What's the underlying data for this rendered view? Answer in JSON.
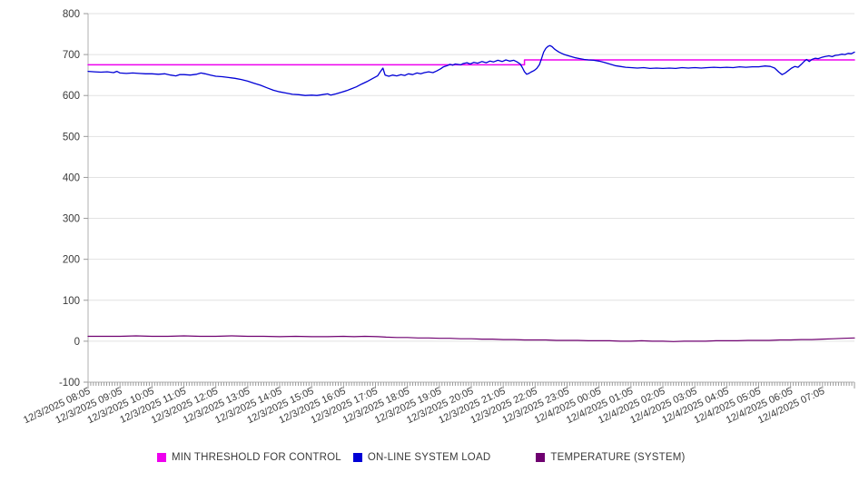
{
  "page": {
    "background": "#ffffff"
  },
  "chart_data": {
    "type": "line",
    "title": "",
    "xlabel": "",
    "ylabel": "",
    "grid": "horizontal",
    "legend_position": "bottom",
    "y_axis": {
      "ylim": [
        -100,
        800
      ],
      "ticks": [
        800,
        700,
        600,
        500,
        400,
        300,
        200,
        100,
        0,
        -100
      ]
    },
    "x_axis": {
      "range_minutes": [
        0,
        1440
      ],
      "minor_tick_minutes": 5,
      "major_tick_minutes": 60,
      "tick_labels": [
        "12/3/2025 08:05",
        "12/3/2025 09:05",
        "12/3/2025 10:05",
        "12/3/2025 11:05",
        "12/3/2025 12:05",
        "12/3/2025 13:05",
        "12/3/2025 14:05",
        "12/3/2025 15:05",
        "12/3/2025 16:05",
        "12/3/2025 17:05",
        "12/3/2025 18:05",
        "12/3/2025 19:05",
        "12/3/2025 20:05",
        "12/3/2025 21:05",
        "12/3/2025 22:05",
        "12/3/2025 23:05",
        "12/4/2025 00:05",
        "12/4/2025 01:05",
        "12/4/2025 02:05",
        "12/4/2025 03:05",
        "12/4/2025 04:05",
        "12/4/2025 05:05",
        "12/4/2025 06:05",
        "12/4/2025 07:05"
      ]
    },
    "series": [
      {
        "name": "MIN THRESHOLD FOR CONTROL",
        "color": "#ee00ee",
        "width": 1.5,
        "points": [
          [
            0,
            675
          ],
          [
            820,
            675
          ],
          [
            820,
            687
          ],
          [
            1440,
            687
          ]
        ]
      },
      {
        "name": "ON-LINE SYSTEM LOAD",
        "color": "#0000d6",
        "width": 1.3,
        "points": [
          [
            0,
            659
          ],
          [
            12,
            658
          ],
          [
            24,
            657
          ],
          [
            36,
            658
          ],
          [
            48,
            656
          ],
          [
            54,
            659
          ],
          [
            60,
            655
          ],
          [
            72,
            654
          ],
          [
            84,
            655
          ],
          [
            96,
            654
          ],
          [
            108,
            653
          ],
          [
            120,
            653
          ],
          [
            132,
            652
          ],
          [
            144,
            653
          ],
          [
            155,
            650
          ],
          [
            165,
            648
          ],
          [
            172,
            651
          ],
          [
            180,
            651
          ],
          [
            192,
            650
          ],
          [
            204,
            652
          ],
          [
            212,
            655
          ],
          [
            220,
            653
          ],
          [
            230,
            650
          ],
          [
            240,
            647
          ],
          [
            252,
            646
          ],
          [
            264,
            644
          ],
          [
            276,
            642
          ],
          [
            288,
            639
          ],
          [
            300,
            635
          ],
          [
            312,
            630
          ],
          [
            324,
            625
          ],
          [
            336,
            619
          ],
          [
            348,
            613
          ],
          [
            360,
            609
          ],
          [
            372,
            606
          ],
          [
            384,
            603
          ],
          [
            396,
            602
          ],
          [
            408,
            600
          ],
          [
            420,
            601
          ],
          [
            430,
            600
          ],
          [
            440,
            602
          ],
          [
            450,
            604
          ],
          [
            456,
            601
          ],
          [
            466,
            604
          ],
          [
            476,
            608
          ],
          [
            486,
            612
          ],
          [
            494,
            616
          ],
          [
            504,
            621
          ],
          [
            514,
            628
          ],
          [
            524,
            634
          ],
          [
            534,
            641
          ],
          [
            544,
            648
          ],
          [
            550,
            660
          ],
          [
            554,
            667
          ],
          [
            558,
            650
          ],
          [
            565,
            647
          ],
          [
            572,
            650
          ],
          [
            580,
            648
          ],
          [
            588,
            651
          ],
          [
            595,
            649
          ],
          [
            602,
            653
          ],
          [
            610,
            651
          ],
          [
            618,
            655
          ],
          [
            625,
            653
          ],
          [
            632,
            656
          ],
          [
            640,
            658
          ],
          [
            648,
            656
          ],
          [
            655,
            660
          ],
          [
            662,
            665
          ],
          [
            668,
            670
          ],
          [
            675,
            673
          ],
          [
            680,
            676
          ],
          [
            685,
            674
          ],
          [
            690,
            677
          ],
          [
            700,
            675
          ],
          [
            705,
            678
          ],
          [
            712,
            680
          ],
          [
            718,
            677
          ],
          [
            725,
            681
          ],
          [
            732,
            679
          ],
          [
            740,
            683
          ],
          [
            748,
            680
          ],
          [
            755,
            684
          ],
          [
            762,
            682
          ],
          [
            770,
            686
          ],
          [
            778,
            683
          ],
          [
            785,
            687
          ],
          [
            792,
            684
          ],
          [
            800,
            686
          ],
          [
            806,
            682
          ],
          [
            812,
            677
          ],
          [
            816,
            668
          ],
          [
            820,
            658
          ],
          [
            824,
            652
          ],
          [
            828,
            654
          ],
          [
            832,
            657
          ],
          [
            838,
            661
          ],
          [
            843,
            666
          ],
          [
            848,
            675
          ],
          [
            852,
            690
          ],
          [
            856,
            706
          ],
          [
            860,
            715
          ],
          [
            864,
            720
          ],
          [
            868,
            722
          ],
          [
            872,
            719
          ],
          [
            876,
            714
          ],
          [
            880,
            710
          ],
          [
            885,
            706
          ],
          [
            890,
            703
          ],
          [
            895,
            700
          ],
          [
            900,
            698
          ],
          [
            908,
            695
          ],
          [
            916,
            692
          ],
          [
            924,
            690
          ],
          [
            932,
            688
          ],
          [
            940,
            687
          ],
          [
            950,
            686
          ],
          [
            960,
            684
          ],
          [
            970,
            681
          ],
          [
            980,
            677
          ],
          [
            990,
            673
          ],
          [
            1000,
            671
          ],
          [
            1010,
            669
          ],
          [
            1020,
            668
          ],
          [
            1032,
            667
          ],
          [
            1044,
            668
          ],
          [
            1056,
            666
          ],
          [
            1068,
            667
          ],
          [
            1080,
            666
          ],
          [
            1092,
            667
          ],
          [
            1104,
            666
          ],
          [
            1116,
            668
          ],
          [
            1128,
            667
          ],
          [
            1140,
            668
          ],
          [
            1152,
            667
          ],
          [
            1164,
            668
          ],
          [
            1176,
            669
          ],
          [
            1188,
            668
          ],
          [
            1200,
            669
          ],
          [
            1212,
            668
          ],
          [
            1224,
            670
          ],
          [
            1236,
            669
          ],
          [
            1248,
            670
          ],
          [
            1260,
            670
          ],
          [
            1272,
            672
          ],
          [
            1282,
            671
          ],
          [
            1290,
            667
          ],
          [
            1298,
            657
          ],
          [
            1304,
            651
          ],
          [
            1310,
            655
          ],
          [
            1316,
            661
          ],
          [
            1322,
            667
          ],
          [
            1328,
            671
          ],
          [
            1334,
            669
          ],
          [
            1340,
            676
          ],
          [
            1346,
            684
          ],
          [
            1350,
            688
          ],
          [
            1355,
            683
          ],
          [
            1360,
            688
          ],
          [
            1366,
            691
          ],
          [
            1372,
            690
          ],
          [
            1378,
            693
          ],
          [
            1384,
            695
          ],
          [
            1392,
            697
          ],
          [
            1398,
            695
          ],
          [
            1404,
            698
          ],
          [
            1410,
            699
          ],
          [
            1416,
            701
          ],
          [
            1422,
            700
          ],
          [
            1428,
            703
          ],
          [
            1434,
            702
          ],
          [
            1440,
            706
          ]
        ]
      },
      {
        "name": "TEMPERATURE (SYSTEM)",
        "color": "#6f0070",
        "width": 1.2,
        "points": [
          [
            0,
            12
          ],
          [
            30,
            12
          ],
          [
            60,
            12
          ],
          [
            90,
            13
          ],
          [
            120,
            12
          ],
          [
            150,
            12
          ],
          [
            180,
            13
          ],
          [
            210,
            12
          ],
          [
            240,
            12
          ],
          [
            270,
            13
          ],
          [
            300,
            12
          ],
          [
            330,
            12
          ],
          [
            360,
            11
          ],
          [
            390,
            12
          ],
          [
            420,
            11
          ],
          [
            450,
            11
          ],
          [
            480,
            12
          ],
          [
            500,
            11
          ],
          [
            520,
            12
          ],
          [
            545,
            11
          ],
          [
            560,
            10
          ],
          [
            580,
            9
          ],
          [
            600,
            9
          ],
          [
            620,
            8
          ],
          [
            640,
            8
          ],
          [
            660,
            7
          ],
          [
            680,
            7
          ],
          [
            700,
            6
          ],
          [
            720,
            6
          ],
          [
            740,
            5
          ],
          [
            760,
            5
          ],
          [
            780,
            4
          ],
          [
            800,
            4
          ],
          [
            820,
            3
          ],
          [
            840,
            3
          ],
          [
            860,
            3
          ],
          [
            880,
            2
          ],
          [
            900,
            2
          ],
          [
            920,
            2
          ],
          [
            940,
            1
          ],
          [
            960,
            1
          ],
          [
            980,
            1
          ],
          [
            1000,
            0
          ],
          [
            1020,
            0
          ],
          [
            1040,
            1
          ],
          [
            1060,
            0
          ],
          [
            1080,
            0
          ],
          [
            1100,
            -1
          ],
          [
            1120,
            0
          ],
          [
            1140,
            0
          ],
          [
            1160,
            0
          ],
          [
            1180,
            1
          ],
          [
            1200,
            1
          ],
          [
            1220,
            1
          ],
          [
            1240,
            2
          ],
          [
            1260,
            2
          ],
          [
            1280,
            2
          ],
          [
            1300,
            3
          ],
          [
            1320,
            3
          ],
          [
            1340,
            4
          ],
          [
            1360,
            4
          ],
          [
            1380,
            5
          ],
          [
            1400,
            6
          ],
          [
            1420,
            7
          ],
          [
            1440,
            8
          ]
        ]
      }
    ],
    "style": {
      "grid_color": "#e2e2e2",
      "axis_color": "#b0b0b0",
      "tick_color": "#9a9a9a",
      "label_color": "#3b3b3b"
    }
  }
}
